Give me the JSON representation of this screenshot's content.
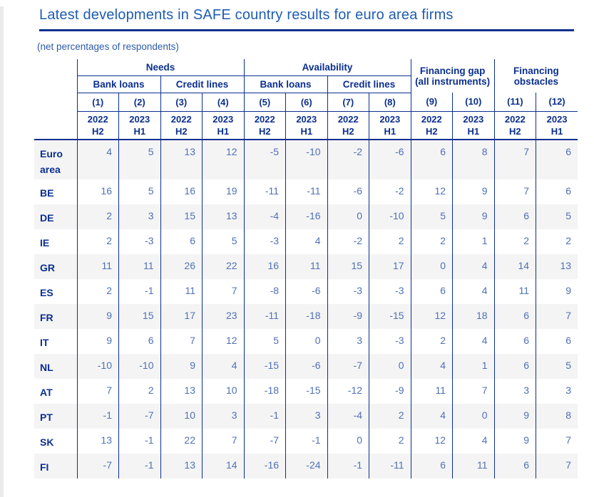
{
  "page": {
    "title": "Latest developments in SAFE country results for euro area firms",
    "subtitle": "(net percentages of respondents)"
  },
  "colors": {
    "navy": "#0a2f8f",
    "title": "#1e5cb3",
    "subtitle": "#2d5ba9",
    "value": "#4f71b7",
    "shade": "#f4f4f4",
    "strip": "#ebebeb"
  },
  "chart_data": {
    "type": "table",
    "title": "Latest developments in SAFE country results for euro area firms",
    "unit": "(net percentages of respondents)",
    "header": {
      "groups": [
        {
          "label": "Needs",
          "colspan": 4,
          "rowspan": 1
        },
        {
          "label": "Availability",
          "colspan": 4,
          "rowspan": 1
        },
        {
          "label": "Financing gap (all instruments)",
          "colspan": 2,
          "rowspan": 2
        },
        {
          "label": "Financing obstacles",
          "colspan": 2,
          "rowspan": 2
        }
      ],
      "subgroups": [
        {
          "label": "Bank loans",
          "colspan": 2
        },
        {
          "label": "Credit lines",
          "colspan": 2
        },
        {
          "label": "Bank loans",
          "colspan": 2
        },
        {
          "label": "Credit lines",
          "colspan": 2
        }
      ],
      "column_numbers": [
        "(1)",
        "(2)",
        "(3)",
        "(4)",
        "(5)",
        "(6)",
        "(7)",
        "(8)",
        "(9)",
        "(10)",
        "(11)",
        "(12)"
      ],
      "periods": [
        {
          "year": "2022",
          "half": "H2"
        },
        {
          "year": "2023",
          "half": "H1"
        },
        {
          "year": "2022",
          "half": "H2"
        },
        {
          "year": "2023",
          "half": "H1"
        },
        {
          "year": "2022",
          "half": "H2"
        },
        {
          "year": "2023",
          "half": "H1"
        },
        {
          "year": "2022",
          "half": "H2"
        },
        {
          "year": "2023",
          "half": "H1"
        },
        {
          "year": "2022",
          "half": "H2"
        },
        {
          "year": "2023",
          "half": "H1"
        },
        {
          "year": "2022",
          "half": "H2"
        },
        {
          "year": "2023",
          "half": "H1"
        }
      ]
    },
    "rows": [
      {
        "label": "Euro area",
        "values": [
          4,
          5,
          13,
          12,
          -5,
          -10,
          -2,
          -6,
          6,
          8,
          7,
          6
        ]
      },
      {
        "label": "BE",
        "values": [
          16,
          5,
          16,
          19,
          -11,
          -11,
          -6,
          -2,
          12,
          9,
          7,
          6
        ]
      },
      {
        "label": "DE",
        "values": [
          2,
          3,
          15,
          13,
          -4,
          -16,
          0,
          -10,
          5,
          9,
          6,
          5
        ]
      },
      {
        "label": "IE",
        "values": [
          2,
          -3,
          6,
          5,
          -3,
          4,
          -2,
          2,
          2,
          1,
          2,
          2
        ]
      },
      {
        "label": "GR",
        "values": [
          11,
          11,
          26,
          22,
          16,
          11,
          15,
          17,
          0,
          4,
          14,
          13
        ]
      },
      {
        "label": "ES",
        "values": [
          2,
          -1,
          11,
          7,
          -8,
          -6,
          -3,
          -3,
          6,
          4,
          11,
          9
        ]
      },
      {
        "label": "FR",
        "values": [
          9,
          15,
          17,
          23,
          -11,
          -18,
          -9,
          -15,
          12,
          18,
          6,
          7
        ]
      },
      {
        "label": "IT",
        "values": [
          9,
          6,
          7,
          12,
          5,
          0,
          3,
          -3,
          2,
          4,
          6,
          6
        ]
      },
      {
        "label": "NL",
        "values": [
          -10,
          -10,
          9,
          4,
          -15,
          -6,
          -7,
          0,
          4,
          1,
          6,
          5
        ]
      },
      {
        "label": "AT",
        "values": [
          7,
          2,
          13,
          10,
          -18,
          -15,
          -12,
          -9,
          11,
          7,
          3,
          3
        ]
      },
      {
        "label": "PT",
        "values": [
          -1,
          -7,
          10,
          3,
          -1,
          3,
          -4,
          2,
          4,
          0,
          9,
          8
        ]
      },
      {
        "label": "SK",
        "values": [
          13,
          -1,
          22,
          7,
          -7,
          -1,
          0,
          2,
          12,
          4,
          9,
          7
        ]
      },
      {
        "label": "FI",
        "values": [
          -7,
          -1,
          13,
          14,
          -16,
          -24,
          -1,
          -11,
          6,
          11,
          6,
          7
        ]
      }
    ]
  }
}
